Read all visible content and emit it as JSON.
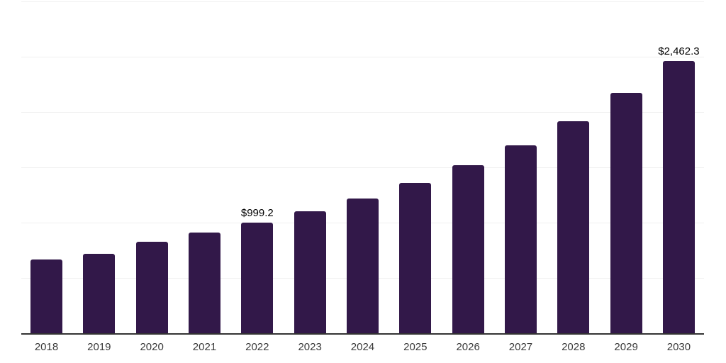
{
  "chart_data": {
    "type": "bar",
    "title": "",
    "xlabel": "",
    "ylabel": "",
    "categories": [
      "2018",
      "2019",
      "2020",
      "2021",
      "2022",
      "2023",
      "2024",
      "2025",
      "2026",
      "2027",
      "2028",
      "2029",
      "2030"
    ],
    "values": [
      664.0,
      718.5,
      828.0,
      910.6,
      999.2,
      1103.3,
      1216.6,
      1359.4,
      1519.5,
      1698.8,
      1914.6,
      2172.7,
      2462.3
    ],
    "value_labels": {
      "2022": "$999.2",
      "2030": "$2,462.3"
    },
    "ylim": [
      0,
      3000
    ],
    "gridline_step": 500,
    "grid": true,
    "legend": false,
    "y_tick_labels_visible": false,
    "colors": {
      "bar": "#321849",
      "axis_line": "#333333",
      "gridline": "#f1f1f1",
      "value_label": "#000000",
      "tick_label": "#3a3a3a",
      "background": "#ffffff"
    }
  }
}
